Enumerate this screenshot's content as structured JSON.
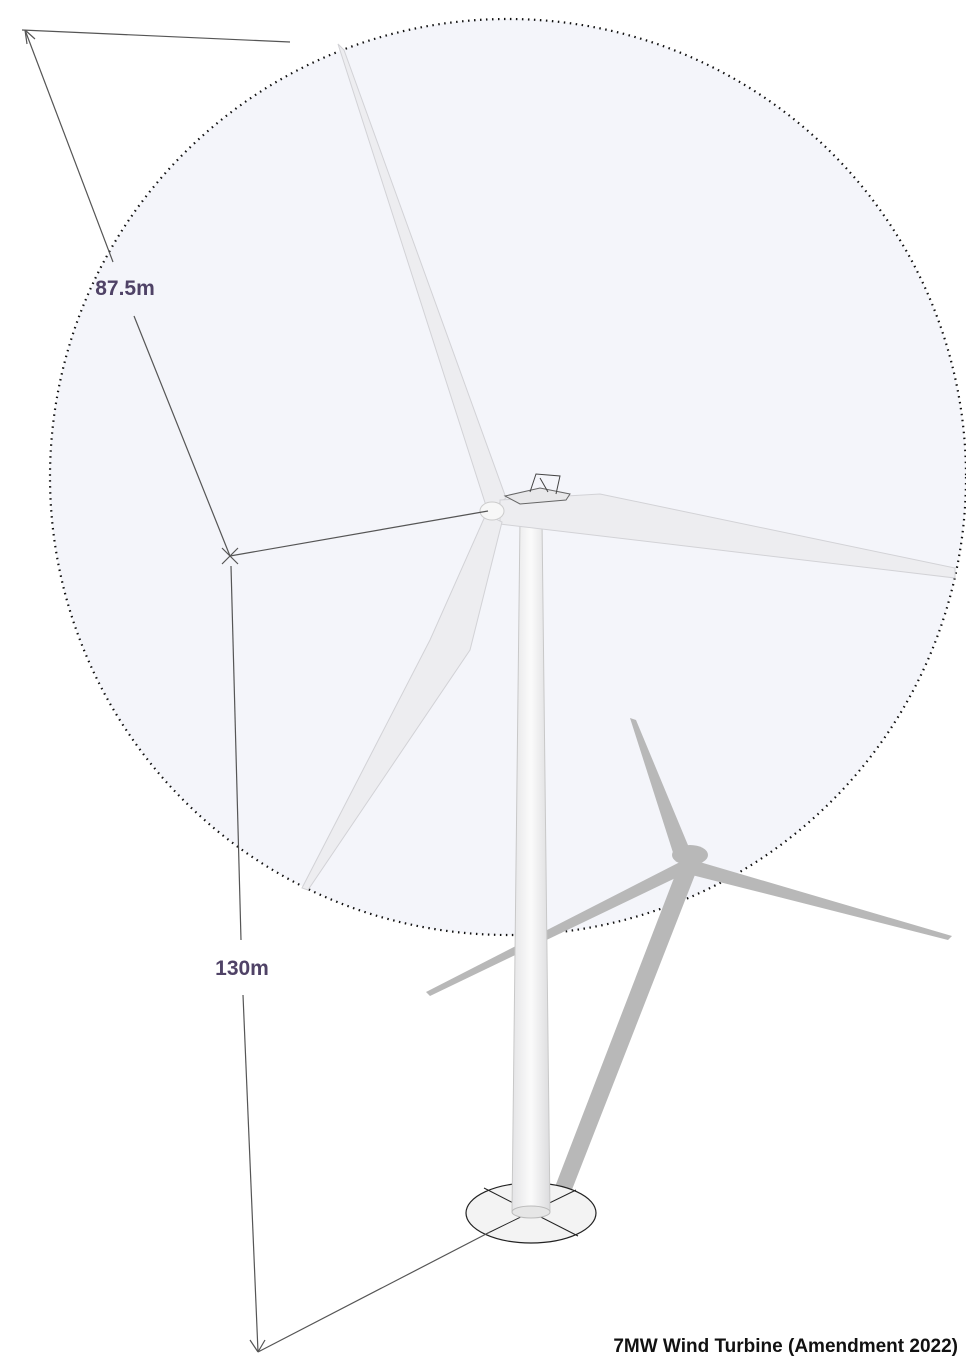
{
  "dimensions": {
    "rotor_radius": "87.5m",
    "hub_height": "130m"
  },
  "caption": "7MW Wind Turbine (Amendment 2022)"
}
